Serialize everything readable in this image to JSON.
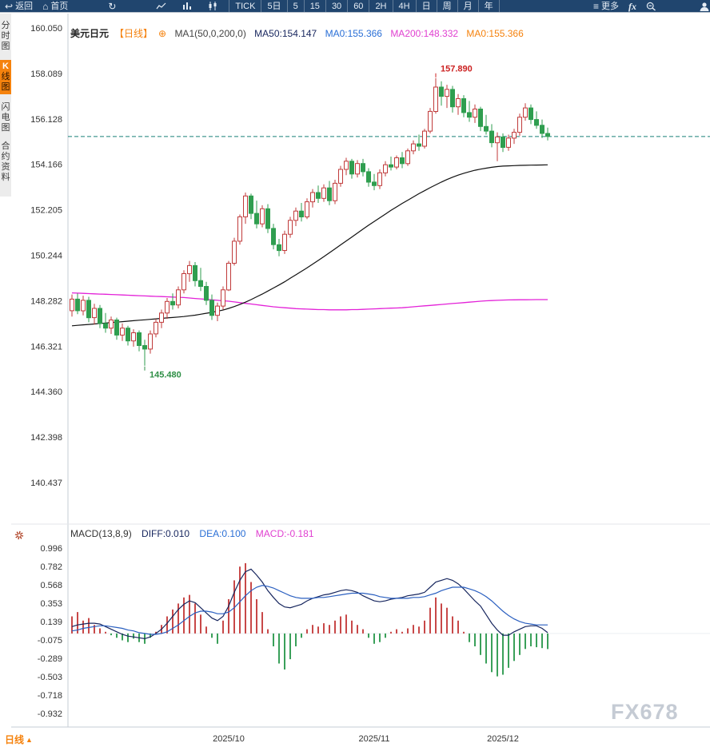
{
  "toolbar": {
    "back_label": "返回",
    "home_label": "首页",
    "timeframes": [
      "TICK",
      "5日",
      "5",
      "15",
      "30",
      "60",
      "2H",
      "4H",
      "日",
      "周",
      "月",
      "年"
    ],
    "more_label": "更多",
    "fx_label": "fx",
    "icons": {
      "back": "↩",
      "home": "⌂",
      "refresh": "↻",
      "more": "≡"
    }
  },
  "sidebar": {
    "tabs": [
      {
        "label": "分时图"
      },
      {
        "label": "K线图",
        "cap": "K",
        "rest": "线图",
        "active": true
      },
      {
        "label": "闪电图"
      },
      {
        "label": "合约资料"
      }
    ]
  },
  "main_header": {
    "symbol": "美元日元",
    "period_tag": "【日线】",
    "add_icon": "⊕",
    "ma_settings": "MA1(50,0,200,0)",
    "ma50": "MA50:154.147",
    "ma0_blue": "MA0:155.366",
    "ma200": "MA200:148.332",
    "ma0_orange": "MA0:155.366"
  },
  "macd_header": {
    "title": "MACD(13,8,9)",
    "diff": "DIFF:0.010",
    "dea": "DEA:0.100",
    "macd": "MACD:-0.181"
  },
  "bottom": {
    "period_label": "日线",
    "period_arrow": "▲",
    "watermark": "FX678"
  },
  "chart_data": {
    "type": "candlestick",
    "title": "美元日元 日线",
    "panels": [
      "price",
      "macd"
    ],
    "price_axis_ticks": [
      "160.050",
      "158.089",
      "156.128",
      "154.166",
      "152.205",
      "150.244",
      "148.282",
      "146.321",
      "144.360",
      "142.398",
      "140.437"
    ],
    "macd_axis_ticks": [
      "0.996",
      "0.782",
      "0.568",
      "0.353",
      "0.139",
      "-0.075",
      "-0.289",
      "-0.503",
      "-0.718",
      "-0.932"
    ],
    "x_ticks": [
      {
        "label": "2025/10",
        "index": 28
      },
      {
        "label": "2025/11",
        "index": 54
      },
      {
        "label": "2025/12",
        "index": 77
      }
    ],
    "current_price": 155.366,
    "annotations": [
      {
        "text": "157.890",
        "index": 65,
        "price": 157.89,
        "placement": "above",
        "color": "#cc2222"
      },
      {
        "text": "145.480",
        "index": 13,
        "price": 145.48,
        "placement": "below",
        "color": "#2f8f46"
      }
    ],
    "candles": [
      [
        147.85,
        148.55,
        147.6,
        148.35
      ],
      [
        148.35,
        148.6,
        147.7,
        147.85
      ],
      [
        147.85,
        148.5,
        147.65,
        148.3
      ],
      [
        148.3,
        148.45,
        147.35,
        147.55
      ],
      [
        147.55,
        148.15,
        147.25,
        147.95
      ],
      [
        147.95,
        148.1,
        147.1,
        147.3
      ],
      [
        147.3,
        147.75,
        146.9,
        147.1
      ],
      [
        147.1,
        147.6,
        146.85,
        147.45
      ],
      [
        147.45,
        147.55,
        146.6,
        146.8
      ],
      [
        146.8,
        147.3,
        146.55,
        147.1
      ],
      [
        147.1,
        147.2,
        146.35,
        146.55
      ],
      [
        146.55,
        147.05,
        146.3,
        146.9
      ],
      [
        146.9,
        147.0,
        146.1,
        146.35
      ],
      [
        146.35,
        146.6,
        145.48,
        146.2
      ],
      [
        146.2,
        147.0,
        146.0,
        146.85
      ],
      [
        146.85,
        147.5,
        146.7,
        147.35
      ],
      [
        147.35,
        147.9,
        147.1,
        147.75
      ],
      [
        147.75,
        148.4,
        147.5,
        148.25
      ],
      [
        148.25,
        148.6,
        147.9,
        148.1
      ],
      [
        148.1,
        148.9,
        147.95,
        148.75
      ],
      [
        148.75,
        149.6,
        148.6,
        149.45
      ],
      [
        149.45,
        150.0,
        149.1,
        149.8
      ],
      [
        149.8,
        149.95,
        148.9,
        149.15
      ],
      [
        149.15,
        149.7,
        148.7,
        148.9
      ],
      [
        148.9,
        149.1,
        148.1,
        148.3
      ],
      [
        148.3,
        148.55,
        147.45,
        147.65
      ],
      [
        147.65,
        148.2,
        147.4,
        148.05
      ],
      [
        148.05,
        148.9,
        147.9,
        148.75
      ],
      [
        148.75,
        150.0,
        148.7,
        149.9
      ],
      [
        149.9,
        151.0,
        149.8,
        150.85
      ],
      [
        150.85,
        152.0,
        150.7,
        151.9
      ],
      [
        151.9,
        152.95,
        151.6,
        152.8
      ],
      [
        152.8,
        152.9,
        151.8,
        152.05
      ],
      [
        152.05,
        152.6,
        151.4,
        151.6
      ],
      [
        151.6,
        152.4,
        151.45,
        152.25
      ],
      [
        152.25,
        152.45,
        151.2,
        151.4
      ],
      [
        151.4,
        151.6,
        150.5,
        150.7
      ],
      [
        150.7,
        150.95,
        150.2,
        150.45
      ],
      [
        150.45,
        151.3,
        150.3,
        151.15
      ],
      [
        151.15,
        151.9,
        151.0,
        151.75
      ],
      [
        151.75,
        152.3,
        151.5,
        152.15
      ],
      [
        152.15,
        152.5,
        151.7,
        151.9
      ],
      [
        151.9,
        152.7,
        151.8,
        152.55
      ],
      [
        152.55,
        153.1,
        152.3,
        152.95
      ],
      [
        152.95,
        153.25,
        152.5,
        152.7
      ],
      [
        152.7,
        153.3,
        152.55,
        153.15
      ],
      [
        153.15,
        153.45,
        152.4,
        152.6
      ],
      [
        152.6,
        153.5,
        152.45,
        153.35
      ],
      [
        153.35,
        154.1,
        153.2,
        153.95
      ],
      [
        153.95,
        154.45,
        153.7,
        154.3
      ],
      [
        154.3,
        154.4,
        153.55,
        153.75
      ],
      [
        153.75,
        154.35,
        153.6,
        154.2
      ],
      [
        154.2,
        154.4,
        153.65,
        153.85
      ],
      [
        153.85,
        154.0,
        153.2,
        153.4
      ],
      [
        153.4,
        153.75,
        153.05,
        153.25
      ],
      [
        153.25,
        153.95,
        153.1,
        153.8
      ],
      [
        153.8,
        154.3,
        153.65,
        154.15
      ],
      [
        154.15,
        154.5,
        153.9,
        154.05
      ],
      [
        154.05,
        154.55,
        153.95,
        154.45
      ],
      [
        154.45,
        154.7,
        154.0,
        154.2
      ],
      [
        154.2,
        154.85,
        154.1,
        154.75
      ],
      [
        154.75,
        155.2,
        154.6,
        155.05
      ],
      [
        155.05,
        155.45,
        154.75,
        154.95
      ],
      [
        154.95,
        155.7,
        154.85,
        155.6
      ],
      [
        155.6,
        156.6,
        155.5,
        156.45
      ],
      [
        156.45,
        157.89,
        156.35,
        157.5
      ],
      [
        157.5,
        157.75,
        156.7,
        157.1
      ],
      [
        157.1,
        157.6,
        156.6,
        157.4
      ],
      [
        157.4,
        157.55,
        156.4,
        156.65
      ],
      [
        156.65,
        157.2,
        156.3,
        157.0
      ],
      [
        157.0,
        157.15,
        156.2,
        156.4
      ],
      [
        156.4,
        156.9,
        156.0,
        156.2
      ],
      [
        156.2,
        156.75,
        155.95,
        156.55
      ],
      [
        156.55,
        156.65,
        155.6,
        155.8
      ],
      [
        155.8,
        156.3,
        155.45,
        155.6
      ],
      [
        155.6,
        155.9,
        154.9,
        155.1
      ],
      [
        155.1,
        155.55,
        154.3,
        155.35
      ],
      [
        155.35,
        155.5,
        154.7,
        154.9
      ],
      [
        154.9,
        155.45,
        154.75,
        155.3
      ],
      [
        155.3,
        155.7,
        155.05,
        155.55
      ],
      [
        155.55,
        156.35,
        155.4,
        156.2
      ],
      [
        156.2,
        156.8,
        156.05,
        156.6
      ],
      [
        156.6,
        156.75,
        155.9,
        156.1
      ],
      [
        156.1,
        156.45,
        155.7,
        155.85
      ],
      [
        155.85,
        156.1,
        155.3,
        155.5
      ],
      [
        155.5,
        155.75,
        155.2,
        155.37
      ]
    ],
    "ma50": [
      147.2,
      147.22,
      147.24,
      147.26,
      147.28,
      147.3,
      147.32,
      147.34,
      147.36,
      147.38,
      147.4,
      147.42,
      147.44,
      147.46,
      147.48,
      147.5,
      147.52,
      147.54,
      147.56,
      147.58,
      147.6,
      147.63,
      147.66,
      147.7,
      147.74,
      147.78,
      147.83,
      147.88,
      147.95,
      148.03,
      148.12,
      148.22,
      148.33,
      148.45,
      148.57,
      148.7,
      148.83,
      148.96,
      149.1,
      149.25,
      149.4,
      149.55,
      149.7,
      149.86,
      150.02,
      150.18,
      150.35,
      150.52,
      150.69,
      150.86,
      151.03,
      151.2,
      151.37,
      151.54,
      151.7,
      151.86,
      152.02,
      152.18,
      152.33,
      152.48,
      152.62,
      152.76,
      152.9,
      153.03,
      153.16,
      153.28,
      153.4,
      153.51,
      153.61,
      153.7,
      153.78,
      153.85,
      153.91,
      153.96,
      154.0,
      154.04,
      154.07,
      154.09,
      154.1,
      154.11,
      154.12,
      154.125,
      154.13,
      154.135,
      154.14,
      154.147
    ],
    "ma200": [
      148.62,
      148.61,
      148.6,
      148.59,
      148.58,
      148.57,
      148.56,
      148.55,
      148.54,
      148.53,
      148.52,
      148.51,
      148.5,
      148.49,
      148.48,
      148.47,
      148.46,
      148.45,
      148.44,
      148.43,
      148.42,
      148.4,
      148.38,
      148.36,
      148.34,
      148.32,
      148.3,
      148.28,
      148.26,
      148.23,
      148.2,
      148.17,
      148.14,
      148.11,
      148.08,
      148.05,
      148.02,
      148.0,
      147.98,
      147.96,
      147.94,
      147.93,
      147.92,
      147.91,
      147.9,
      147.9,
      147.89,
      147.89,
      147.89,
      147.89,
      147.9,
      147.9,
      147.91,
      147.92,
      147.93,
      147.94,
      147.95,
      147.96,
      147.97,
      147.98,
      148.0,
      148.02,
      148.04,
      148.06,
      148.08,
      148.1,
      148.12,
      148.14,
      148.16,
      148.18,
      148.2,
      148.22,
      148.24,
      148.26,
      148.28,
      148.29,
      148.3,
      148.31,
      148.315,
      148.32,
      148.322,
      148.325,
      148.327,
      148.329,
      148.33,
      148.332
    ],
    "macd": {
      "diff": [
        0.08,
        0.1,
        0.11,
        0.12,
        0.12,
        0.11,
        0.08,
        0.05,
        0.02,
        -0.01,
        -0.03,
        -0.04,
        -0.05,
        -0.06,
        -0.04,
        0.0,
        0.05,
        0.12,
        0.2,
        0.28,
        0.34,
        0.38,
        0.36,
        0.3,
        0.24,
        0.18,
        0.15,
        0.2,
        0.32,
        0.48,
        0.62,
        0.72,
        0.75,
        0.68,
        0.6,
        0.5,
        0.42,
        0.35,
        0.31,
        0.3,
        0.32,
        0.34,
        0.38,
        0.41,
        0.43,
        0.45,
        0.46,
        0.48,
        0.5,
        0.51,
        0.5,
        0.48,
        0.44,
        0.41,
        0.38,
        0.37,
        0.38,
        0.4,
        0.41,
        0.42,
        0.44,
        0.45,
        0.46,
        0.48,
        0.54,
        0.6,
        0.62,
        0.64,
        0.62,
        0.58,
        0.52,
        0.45,
        0.38,
        0.32,
        0.22,
        0.12,
        0.04,
        -0.02,
        -0.02,
        0.02,
        0.05,
        0.08,
        0.09,
        0.09,
        0.06,
        0.01
      ],
      "dea": [
        0.03,
        0.04,
        0.06,
        0.07,
        0.08,
        0.09,
        0.09,
        0.08,
        0.07,
        0.06,
        0.04,
        0.03,
        0.01,
        0.0,
        -0.01,
        -0.01,
        0.0,
        0.02,
        0.06,
        0.1,
        0.15,
        0.2,
        0.24,
        0.26,
        0.26,
        0.25,
        0.23,
        0.23,
        0.25,
        0.3,
        0.37,
        0.44,
        0.5,
        0.54,
        0.56,
        0.55,
        0.53,
        0.5,
        0.47,
        0.44,
        0.42,
        0.41,
        0.41,
        0.41,
        0.42,
        0.42,
        0.43,
        0.44,
        0.45,
        0.46,
        0.47,
        0.47,
        0.47,
        0.46,
        0.45,
        0.43,
        0.42,
        0.41,
        0.41,
        0.41,
        0.41,
        0.42,
        0.42,
        0.43,
        0.45,
        0.47,
        0.5,
        0.52,
        0.54,
        0.54,
        0.54,
        0.52,
        0.5,
        0.47,
        0.43,
        0.38,
        0.32,
        0.26,
        0.21,
        0.17,
        0.14,
        0.12,
        0.11,
        0.1,
        0.1,
        0.1
      ],
      "hist": [
        0.2,
        0.25,
        0.15,
        0.18,
        0.1,
        0.06,
        0.02,
        -0.02,
        -0.05,
        -0.08,
        -0.1,
        -0.06,
        -0.1,
        -0.12,
        -0.05,
        0.02,
        0.1,
        0.2,
        0.28,
        0.35,
        0.42,
        0.45,
        0.35,
        0.22,
        0.08,
        -0.05,
        -0.12,
        0.15,
        0.4,
        0.62,
        0.78,
        0.82,
        0.6,
        0.4,
        0.25,
        0.05,
        -0.15,
        -0.35,
        -0.42,
        -0.3,
        -0.15,
        -0.05,
        0.05,
        0.1,
        0.08,
        0.12,
        0.1,
        0.15,
        0.2,
        0.22,
        0.15,
        0.1,
        0.05,
        -0.05,
        -0.12,
        -0.1,
        -0.05,
        0.02,
        0.05,
        0.02,
        0.06,
        0.1,
        0.08,
        0.15,
        0.3,
        0.42,
        0.35,
        0.3,
        0.2,
        0.15,
        0.02,
        -0.1,
        -0.15,
        -0.25,
        -0.35,
        -0.45,
        -0.5,
        -0.48,
        -0.4,
        -0.32,
        -0.25,
        -0.18,
        -0.15,
        -0.16,
        -0.17,
        -0.181
      ]
    },
    "colors": {
      "bull": "#c03a3a",
      "bear": "#2f9e4f",
      "ma50": "#111111",
      "ma200": "#e321d8",
      "diff": "#17265e",
      "dea": "#2a5fc0",
      "hist_pos": "#c84848",
      "hist_neg": "#3aa05a",
      "current_line": "#178077"
    }
  }
}
